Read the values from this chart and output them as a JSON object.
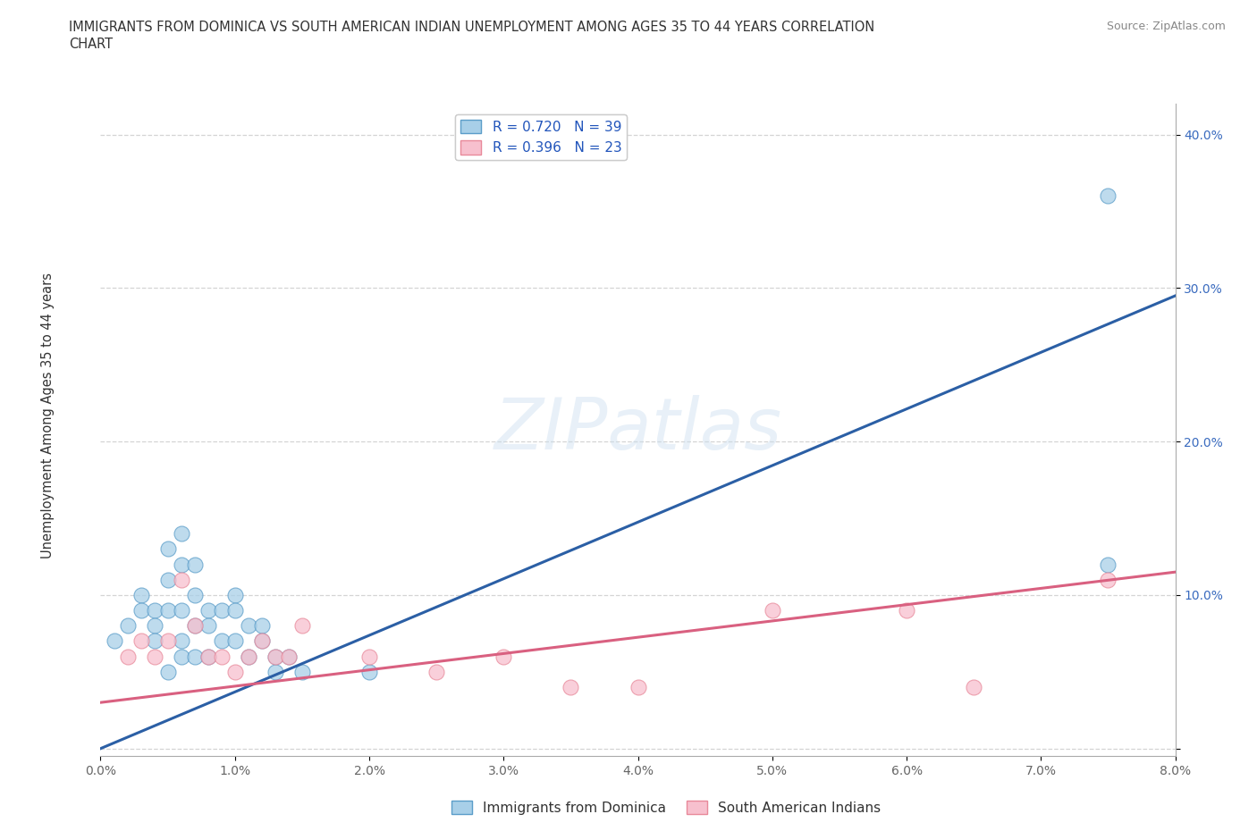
{
  "title_line1": "IMMIGRANTS FROM DOMINICA VS SOUTH AMERICAN INDIAN UNEMPLOYMENT AMONG AGES 35 TO 44 YEARS CORRELATION",
  "title_line2": "CHART",
  "source": "Source: ZipAtlas.com",
  "ylabel": "Unemployment Among Ages 35 to 44 years",
  "xlim": [
    0.0,
    0.08
  ],
  "ylim": [
    -0.005,
    0.42
  ],
  "xticks": [
    0.0,
    0.01,
    0.02,
    0.03,
    0.04,
    0.05,
    0.06,
    0.07,
    0.08
  ],
  "xticklabels": [
    "0.0%",
    "1.0%",
    "2.0%",
    "3.0%",
    "4.0%",
    "5.0%",
    "6.0%",
    "7.0%",
    "8.0%"
  ],
  "ytick_positions": [
    0.0,
    0.1,
    0.2,
    0.3,
    0.4
  ],
  "ytick_labels": [
    "",
    "10.0%",
    "20.0%",
    "30.0%",
    "40.0%"
  ],
  "series1_fill": "#a8cfe8",
  "series1_edge": "#5b9dc9",
  "series2_fill": "#f7c0ce",
  "series2_edge": "#e8899a",
  "trendline1_color": "#2b5fa5",
  "trendline2_color": "#d96080",
  "R1": 0.72,
  "N1": 39,
  "R2": 0.396,
  "N2": 23,
  "legend1": "Immigrants from Dominica",
  "legend2": "South American Indians",
  "watermark": "ZIPatlas",
  "background_color": "#ffffff",
  "grid_color": "#d0d0d0",
  "scatter1_x": [
    0.001,
    0.002,
    0.003,
    0.003,
    0.004,
    0.004,
    0.004,
    0.005,
    0.005,
    0.005,
    0.005,
    0.006,
    0.006,
    0.006,
    0.006,
    0.006,
    0.007,
    0.007,
    0.007,
    0.007,
    0.008,
    0.008,
    0.008,
    0.009,
    0.009,
    0.01,
    0.01,
    0.01,
    0.011,
    0.011,
    0.012,
    0.012,
    0.013,
    0.013,
    0.014,
    0.015,
    0.02,
    0.075,
    0.075
  ],
  "scatter1_y": [
    0.07,
    0.08,
    0.1,
    0.09,
    0.09,
    0.08,
    0.07,
    0.13,
    0.11,
    0.09,
    0.05,
    0.14,
    0.12,
    0.09,
    0.07,
    0.06,
    0.12,
    0.1,
    0.08,
    0.06,
    0.09,
    0.08,
    0.06,
    0.09,
    0.07,
    0.1,
    0.09,
    0.07,
    0.08,
    0.06,
    0.08,
    0.07,
    0.06,
    0.05,
    0.06,
    0.05,
    0.05,
    0.36,
    0.12
  ],
  "scatter2_x": [
    0.002,
    0.003,
    0.004,
    0.005,
    0.006,
    0.007,
    0.008,
    0.009,
    0.01,
    0.011,
    0.012,
    0.013,
    0.014,
    0.015,
    0.02,
    0.025,
    0.03,
    0.035,
    0.04,
    0.05,
    0.06,
    0.065,
    0.075
  ],
  "scatter2_y": [
    0.06,
    0.07,
    0.06,
    0.07,
    0.11,
    0.08,
    0.06,
    0.06,
    0.05,
    0.06,
    0.07,
    0.06,
    0.06,
    0.08,
    0.06,
    0.05,
    0.06,
    0.04,
    0.04,
    0.09,
    0.09,
    0.04,
    0.11
  ],
  "trendline1_x": [
    0.0,
    0.08
  ],
  "trendline1_y": [
    0.0,
    0.295
  ],
  "trendline2_x": [
    0.0,
    0.08
  ],
  "trendline2_y": [
    0.03,
    0.115
  ]
}
